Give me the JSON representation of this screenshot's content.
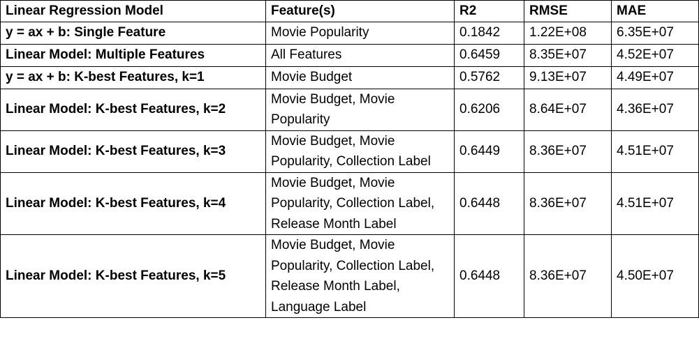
{
  "table": {
    "headers": [
      "Linear Regression Model",
      "Feature(s)",
      "R2",
      "RMSE",
      "MAE"
    ],
    "rows": [
      {
        "model": "y = ax + b: Single Feature",
        "features": "Movie Popularity",
        "r2": "0.1842",
        "rmse": "1.22E+08",
        "mae": "6.35E+07"
      },
      {
        "model": "Linear Model: Multiple Features",
        "features": "All Features",
        "r2": "0.6459",
        "rmse": "8.35E+07",
        "mae": "4.52E+07"
      },
      {
        "model": "y = ax + b: K-best Features, k=1",
        "features": "Movie Budget",
        "r2": "0.5762",
        "rmse": "9.13E+07",
        "mae": "4.49E+07"
      },
      {
        "model": "Linear Model: K-best Features, k=2",
        "features": "Movie Budget, Movie Popularity",
        "r2": "0.6206",
        "rmse": "8.64E+07",
        "mae": "4.36E+07"
      },
      {
        "model": "Linear Model: K-best Features, k=3",
        "features": "Movie Budget, Movie Popularity, Collection Label",
        "r2": "0.6449",
        "rmse": "8.36E+07",
        "mae": "4.51E+07"
      },
      {
        "model": "Linear Model: K-best Features, k=4",
        "features": "Movie Budget, Movie Popularity, Collection Label, Release Month Label",
        "r2": "0.6448",
        "rmse": "8.36E+07",
        "mae": "4.51E+07"
      },
      {
        "model": "Linear Model: K-best Features, k=5",
        "features": "Movie Budget, Movie Popularity, Collection Label, Release Month Label, Language Label",
        "r2": "0.6448",
        "rmse": "8.36E+07",
        "mae": "4.50E+07"
      }
    ]
  }
}
